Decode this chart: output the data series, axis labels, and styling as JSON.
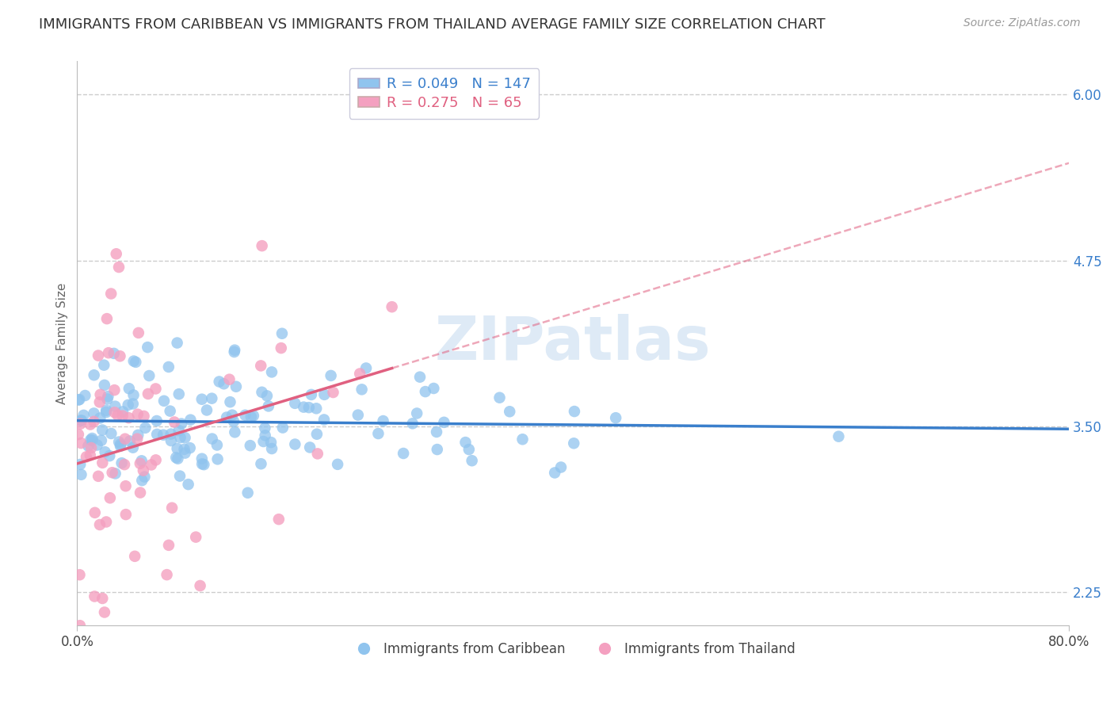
{
  "title": "IMMIGRANTS FROM CARIBBEAN VS IMMIGRANTS FROM THAILAND AVERAGE FAMILY SIZE CORRELATION CHART",
  "source": "Source: ZipAtlas.com",
  "xlabel": "",
  "ylabel": "Average Family Size",
  "xlim": [
    0.0,
    0.8
  ],
  "ylim": [
    2.0,
    6.25
  ],
  "yticks": [
    2.25,
    3.5,
    4.75,
    6.0
  ],
  "xtick_labels": [
    "0.0%",
    "80.0%"
  ],
  "legend_entries": [
    "Immigrants from Caribbean",
    "Immigrants from Thailand"
  ],
  "caribbean_R": "0.049",
  "caribbean_N": "147",
  "thailand_R": "0.275",
  "thailand_N": "65",
  "caribbean_color": "#90C4EE",
  "thailand_color": "#F4A0C0",
  "caribbean_line_color": "#3A7FCC",
  "thailand_line_color": "#E06080",
  "title_fontsize": 13,
  "source_fontsize": 10,
  "axis_label_fontsize": 11,
  "tick_fontsize": 12,
  "legend_fontsize": 12,
  "watermark": "ZIPatlas",
  "background_color": "#FFFFFF",
  "grid_color": "#CCCCCC"
}
